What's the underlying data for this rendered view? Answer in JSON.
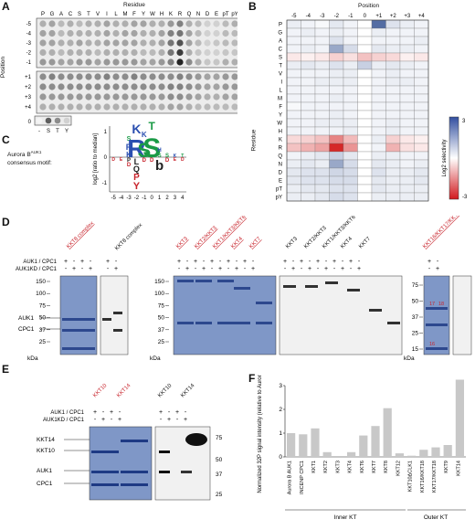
{
  "panels": {
    "A": {
      "label": "A",
      "xlabel": "Residue",
      "ylabel": "Position",
      "residues": [
        "P",
        "G",
        "A",
        "C",
        "S",
        "T",
        "V",
        "I",
        "L",
        "M",
        "F",
        "Y",
        "W",
        "H",
        "K",
        "R",
        "Q",
        "N",
        "D",
        "E",
        "pT",
        "pY"
      ],
      "positions_top": [
        "-5",
        "-4",
        "-3",
        "-2",
        "-1"
      ],
      "positions_bottom": [
        "+1",
        "+2",
        "+3",
        "+4"
      ],
      "zero_label": "0",
      "zero_residues": [
        "-",
        "S",
        "T",
        "Y"
      ]
    },
    "B": {
      "label": "B",
      "xlabel": "Position",
      "ylabel": "Residue",
      "positions": [
        "-5",
        "-4",
        "-3",
        "-2",
        "-1",
        "0",
        "+1",
        "+2",
        "+3",
        "+4"
      ],
      "residues": [
        "P",
        "G",
        "A",
        "C",
        "S",
        "T",
        "V",
        "I",
        "L",
        "M",
        "F",
        "Y",
        "W",
        "H",
        "K",
        "R",
        "Q",
        "N",
        "D",
        "E",
        "pT",
        "pY"
      ],
      "colorbar_label": "Log2 selectivity",
      "colorbar_ticks": [
        "-3",
        "3"
      ]
    },
    "C": {
      "label": "C",
      "motif_label": "Aurora B",
      "motif_super": "AUK1",
      "motif_label2": "consensus motif:",
      "ylabel": "log2 [ratio to median]",
      "yticks": [
        "1",
        "0",
        "-1"
      ],
      "xticks": [
        "-5",
        "-4",
        "-3",
        "-2",
        "-1",
        "0",
        "1",
        "2",
        "3",
        "4"
      ]
    },
    "D": {
      "label": "D",
      "row1": "AUK1 / CPC1",
      "row2": "AUK1KD / CPC1",
      "kda": "kDa",
      "blot_labels": [
        "KKT8 complex",
        "KKT8 complex",
        "KKT3",
        "KKT2/KKT3",
        "KKT1/KKT3/KKT6",
        "KKT4",
        "KKT7",
        "KKT3",
        "KKT2/KKT3",
        "KKT1/KKT3/KKT6",
        "KKT4",
        "KKT7",
        "KKT16/KKT17/KKT18",
        ""
      ],
      "markers_left": [
        "150",
        "100",
        "75",
        "50",
        "37",
        "25"
      ],
      "markers_mid": [
        "150",
        "100",
        "75",
        "50",
        "37",
        "25"
      ],
      "markers_right": [
        "75",
        "50",
        "37",
        "25",
        "15"
      ],
      "side_labels": [
        "AUK1",
        "CPC1"
      ],
      "plus": "+",
      "minus": "-",
      "red_nums": [
        "17",
        "18",
        "16"
      ]
    },
    "E": {
      "label": "E",
      "blot_labels": [
        "KKT10",
        "KKT14",
        "KKT10",
        "KKT14"
      ],
      "blot_super": "ΔCLK1",
      "row1": "AUK1 / CPC1",
      "row2": "AUK1KD / CPC1",
      "side_labels": [
        "KKT14",
        "KKT10",
        "AUK1",
        "CPC1"
      ],
      "markers": [
        "75",
        "50",
        "37",
        "25"
      ]
    },
    "F": {
      "label": "F",
      "ylabel": "Normalized 32P signal intensity (relative to Aurora B AUK1)",
      "group_inner": "Inner KT",
      "group_outer": "Outer KT"
    }
  },
  "chart_data": {
    "type": "bar",
    "categories": [
      "Aurora B AUK1",
      "INCENP CPC1",
      "KKT1",
      "KKT2",
      "KKT3",
      "KKT4",
      "KKT6",
      "KKT7",
      "KKT8",
      "KKT12",
      "KKT10ΔCLK1",
      "KKT16/KKT18",
      "KKT17/KKT18",
      "KKT9",
      "KKT14"
    ],
    "values": [
      1.0,
      0.95,
      1.2,
      0.2,
      0.0,
      0.2,
      0.9,
      1.3,
      2.05,
      0.15,
      0.05,
      0.3,
      0.4,
      0.5,
      3.25
    ],
    "ylim": [
      0,
      3
    ],
    "yticks": [
      "0",
      "1",
      "2",
      "3"
    ],
    "xlabel": "",
    "ylabel": "Normalized 32P signal intensity (relative to Aurora B AUK1)",
    "title": ""
  }
}
